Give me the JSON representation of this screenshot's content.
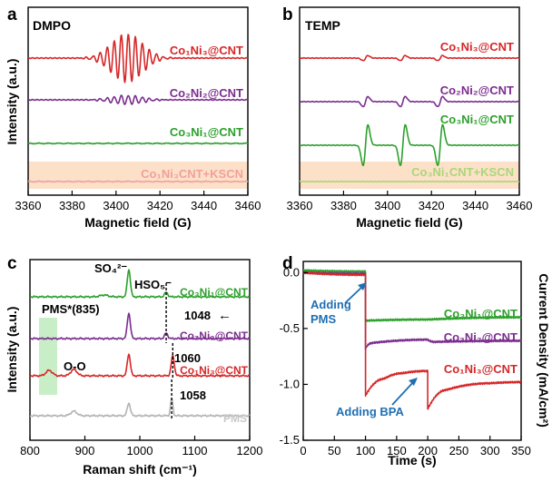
{
  "colors": {
    "red": "#d62728",
    "purple": "#7b2d8e",
    "green": "#2ca02c",
    "pink": "#f0a0a0",
    "lightgreen": "#a8d878",
    "gray": "#b3b3b3",
    "blue": "#1f6fb2",
    "shade": "#fde0c8",
    "shade_green": "#c8eec8"
  },
  "chart_data": [
    {
      "panel": "a",
      "type": "line",
      "title": "DMPO",
      "xlabel": "Magnetic field (G)",
      "ylabel": "Intensity (a.u.)",
      "xlim": [
        3360,
        3460
      ],
      "xticks": [
        "3360",
        "3380",
        "3400",
        "3420",
        "3440",
        "3460"
      ],
      "series": [
        {
          "name": "Co₁Ni₃@CNT",
          "color": "#d62728",
          "pattern": "DMPO-OH signal, strong"
        },
        {
          "name": "Co₂Ni₂@CNT",
          "color": "#7b2d8e",
          "pattern": "DMPO-OH signal, weak"
        },
        {
          "name": "Co₃Ni₁@CNT",
          "color": "#2ca02c",
          "pattern": "flat"
        },
        {
          "name": "Co₁Ni₃CNT+KSCN",
          "color": "#f0a0a0",
          "pattern": "flat"
        }
      ]
    },
    {
      "panel": "b",
      "type": "line",
      "title": "TEMP",
      "xlabel": "Magnetic field (G)",
      "ylabel": "",
      "xlim": [
        3360,
        3460
      ],
      "xticks": [
        "3360",
        "3380",
        "3400",
        "3420",
        "3440",
        "3460"
      ],
      "triplet_centers": [
        3390,
        3407,
        3424
      ],
      "series": [
        {
          "name": "Co₁Ni₃@CNT",
          "color": "#d62728",
          "amplitude": "weak"
        },
        {
          "name": "Co₂Ni₂@CNT",
          "color": "#7b2d8e",
          "amplitude": "medium"
        },
        {
          "name": "Co₃Ni₁@CNT",
          "color": "#2ca02c",
          "amplitude": "strong"
        },
        {
          "name": "Co₃Ni₁CNT+KSCN",
          "color": "#a8d878",
          "amplitude": "flat"
        }
      ]
    },
    {
      "panel": "c",
      "type": "line",
      "xlabel": "Raman shift (cm⁻¹)",
      "ylabel": "Intensity (a.u.)",
      "xlim": [
        800,
        1200
      ],
      "xticks": [
        "800",
        "900",
        "1000",
        "1100",
        "1200"
      ],
      "peaks": {
        "SO4": 980,
        "HSO5": 1058,
        "PMS_star": 835,
        "O_O": 880
      },
      "series": [
        {
          "name": "Co₃Ni₁@CNT",
          "color": "#2ca02c",
          "peak_positions": [
            980,
            1048
          ]
        },
        {
          "name": "Co₂Ni₂@CNT",
          "color": "#7b2d8e",
          "peak_positions": [
            980,
            1048
          ]
        },
        {
          "name": "Co₁Ni₃@CNT",
          "color": "#d62728",
          "peak_positions": [
            835,
            880,
            980,
            1060
          ]
        },
        {
          "name": "PMS",
          "color": "#b3b3b3",
          "peak_positions": [
            880,
            980,
            1058
          ]
        }
      ],
      "annotations": {
        "so4": "SO₄²⁻",
        "hso5": "HSO₅⁻",
        "pms": "PMS*(835)",
        "oo": "O-O",
        "p1048": "1048",
        "p1060": "1060",
        "p1058": "1058",
        "arrow": "←"
      }
    },
    {
      "panel": "d",
      "type": "line",
      "xlabel": "Time (s)",
      "ylabel": "Current Density (mA/cm²)",
      "xlim": [
        0,
        350
      ],
      "ylim": [
        -1.5,
        0.1
      ],
      "xticks": [
        "0",
        "50",
        "100",
        "150",
        "200",
        "250",
        "300",
        "350"
      ],
      "yticks": [
        "0.0",
        "-0.5",
        "-1.0",
        "-1.5"
      ],
      "series": [
        {
          "name": "Co₃Ni₁@CNT",
          "color": "#2ca02c",
          "x": [
            0,
            100,
            100,
            200,
            350
          ],
          "y": [
            0.02,
            0.01,
            -0.43,
            -0.42,
            -0.4
          ]
        },
        {
          "name": "Co₂Ni₂@CNT",
          "color": "#7b2d8e",
          "x": [
            0,
            100,
            100,
            110,
            200,
            210,
            350
          ],
          "y": [
            0.0,
            -0.01,
            -0.68,
            -0.63,
            -0.6,
            -0.62,
            -0.61
          ]
        },
        {
          "name": "Co₁Ni₃@CNT",
          "color": "#d62728",
          "x": [
            0,
            100,
            100,
            130,
            160,
            200,
            200,
            230,
            300,
            350
          ],
          "y": [
            0.0,
            -0.02,
            -1.1,
            -0.95,
            -0.9,
            -0.88,
            -1.22,
            -1.05,
            -0.99,
            -0.98
          ]
        }
      ],
      "annotations": {
        "adding_pms": "Adding PMS",
        "adding_bpa": "Adding BPA",
        "pms_time": 100,
        "bpa_time": 200
      }
    }
  ],
  "panels": {
    "a": {
      "letter": "a",
      "title": "DMPO",
      "ylabel": "Intensity (a.u.)",
      "xlabel": "Magnetic field (G)"
    },
    "b": {
      "letter": "b",
      "title": "TEMP",
      "xlabel": "Magnetic field (G)"
    },
    "c": {
      "letter": "c",
      "ylabel": "Intensity (a.u.)",
      "xlabel": "Raman shift (cm⁻¹)"
    },
    "d": {
      "letter": "d",
      "ylabel": "Current Density (mA/cm²)",
      "xlabel": "Time (s)"
    }
  }
}
